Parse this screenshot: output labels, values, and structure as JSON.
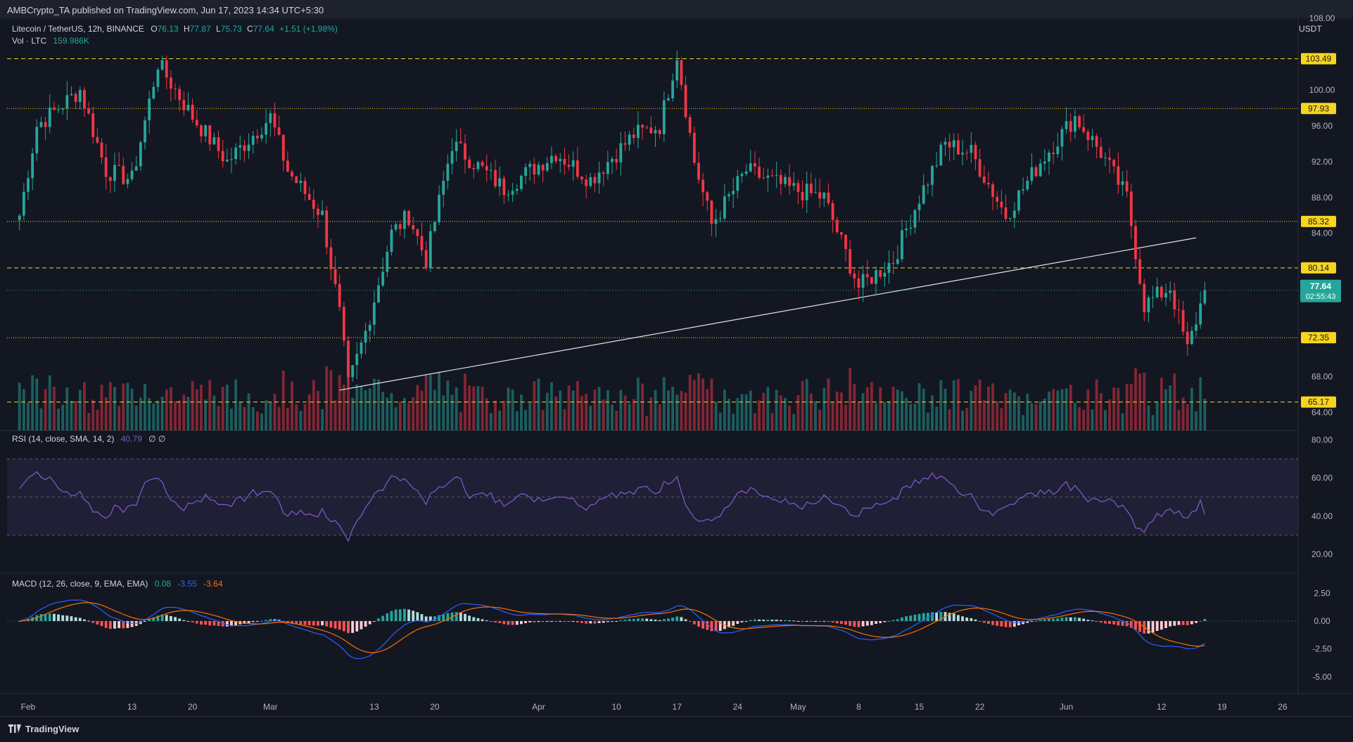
{
  "header": {
    "published": "AMBCrypto_TA published on TradingView.com, Jun 17, 2023 14:34 UTC+5:30",
    "symbol": "Litecoin / TetherUS, 12h, BINANCE",
    "ohlc": {
      "o_label": "O",
      "o": "76.13",
      "h_label": "H",
      "h": "77.87",
      "l_label": "L",
      "l": "75.73",
      "c_label": "C",
      "c": "77.64",
      "chg": "+1.51 (+1.98%)"
    },
    "vol_label": "Vol · LTC",
    "vol_value": "159.986K",
    "currency": "USDT"
  },
  "price_axis_ticks": [
    "108.00",
    "100.00",
    "96.00",
    "92.00",
    "88.00",
    "84.00",
    "68.00",
    "64.00"
  ],
  "levels": [
    {
      "value": 103.49,
      "label": "103.49",
      "style": "dashed"
    },
    {
      "value": 97.93,
      "label": "97.93",
      "style": "dotted"
    },
    {
      "value": 85.32,
      "label": "85.32",
      "style": "dotted"
    },
    {
      "value": 80.14,
      "label": "80.14",
      "style": "dashed"
    },
    {
      "value": 72.35,
      "label": "72.35",
      "style": "dotted"
    },
    {
      "value": 65.17,
      "label": "65.17",
      "style": "dashed"
    }
  ],
  "current_price": {
    "value": 77.64,
    "label": "77.64",
    "countdown": "02:55:43"
  },
  "trendline": {
    "start": {
      "date": "Mar 9",
      "price": 66.5
    },
    "end": {
      "date": "Jun 16",
      "price": 83.5
    }
  },
  "rsi": {
    "label": "RSI (14, close, SMA, 14, 2)",
    "value": "40.79",
    "extra": "∅ ∅",
    "ticks": [
      "80.00",
      "60.00",
      "40.00",
      "20.00"
    ],
    "band": [
      30,
      70
    ],
    "mid": 50,
    "color": "#7e57c2"
  },
  "macd": {
    "label": "MACD (12, 26, close, 9, EMA, EMA)",
    "hist": "0.08",
    "macd": "-3.55",
    "signal": "-3.64",
    "ticks": [
      "2.50",
      "0.00",
      "-2.50",
      "-5.00"
    ],
    "colors": {
      "macd": "#2962ff",
      "signal": "#ff6d00",
      "up_strong": "#26a69a",
      "up_weak": "#b2dfdb",
      "down_strong": "#ff5252",
      "down_weak": "#ffcdd2"
    }
  },
  "time_axis": [
    "Feb",
    "13",
    "20",
    "Mar",
    "13",
    "20",
    "Apr",
    "10",
    "17",
    "24",
    "May",
    "8",
    "15",
    "22",
    "Jun",
    "12",
    "19",
    "26"
  ],
  "colors": {
    "up": "#26a69a",
    "down": "#f23645",
    "level": "#f7d51d",
    "bg": "#131722"
  },
  "footer": {
    "brand": "TradingView"
  },
  "chart_data": {
    "type": "candlestick",
    "title": "Litecoin / TetherUS, 12h, BINANCE",
    "ylabel": "USDT",
    "ylim": [
      62,
      108
    ],
    "x_start": "Jan 31",
    "x_end": "Jun 17",
    "key_points": [
      {
        "date": "Jan 31",
        "close": 86
      },
      {
        "date": "Feb 2",
        "close": 96
      },
      {
        "date": "Feb 7",
        "close": 100
      },
      {
        "date": "Feb 10",
        "close": 91
      },
      {
        "date": "Feb 13",
        "close": 90
      },
      {
        "date": "Feb 16",
        "close": 103
      },
      {
        "date": "Feb 20",
        "close": 97
      },
      {
        "date": "Feb 24",
        "close": 92
      },
      {
        "date": "Mar 1",
        "close": 97
      },
      {
        "date": "Mar 3",
        "close": 91
      },
      {
        "date": "Mar 7",
        "close": 86
      },
      {
        "date": "Mar 9",
        "close": 75
      },
      {
        "date": "Mar 10",
        "close": 67
      },
      {
        "date": "Mar 12",
        "close": 73
      },
      {
        "date": "Mar 15",
        "close": 84
      },
      {
        "date": "Mar 17",
        "close": 86
      },
      {
        "date": "Mar 19",
        "close": 81
      },
      {
        "date": "Mar 22",
        "close": 94
      },
      {
        "date": "Mar 28",
        "close": 89
      },
      {
        "date": "Apr 3",
        "close": 93
      },
      {
        "date": "Apr 7",
        "close": 90
      },
      {
        "date": "Apr 12",
        "close": 95
      },
      {
        "date": "Apr 15",
        "close": 96
      },
      {
        "date": "Apr 17",
        "close": 104
      },
      {
        "date": "Apr 19",
        "close": 92
      },
      {
        "date": "Apr 21",
        "close": 85
      },
      {
        "date": "Apr 25",
        "close": 91
      },
      {
        "date": "Apr 30",
        "close": 89
      },
      {
        "date": "May 4",
        "close": 88
      },
      {
        "date": "May 8",
        "close": 78
      },
      {
        "date": "May 12",
        "close": 81
      },
      {
        "date": "May 15",
        "close": 88
      },
      {
        "date": "May 18",
        "close": 94
      },
      {
        "date": "May 21",
        "close": 93
      },
      {
        "date": "May 25",
        "close": 86
      },
      {
        "date": "May 29",
        "close": 92
      },
      {
        "date": "Jun 2",
        "close": 97
      },
      {
        "date": "Jun 5",
        "close": 93
      },
      {
        "date": "Jun 8",
        "close": 88
      },
      {
        "date": "Jun 10",
        "close": 76
      },
      {
        "date": "Jun 13",
        "close": 78
      },
      {
        "date": "Jun 15",
        "close": 71
      },
      {
        "date": "Jun 17",
        "close": 77.64
      }
    ]
  }
}
